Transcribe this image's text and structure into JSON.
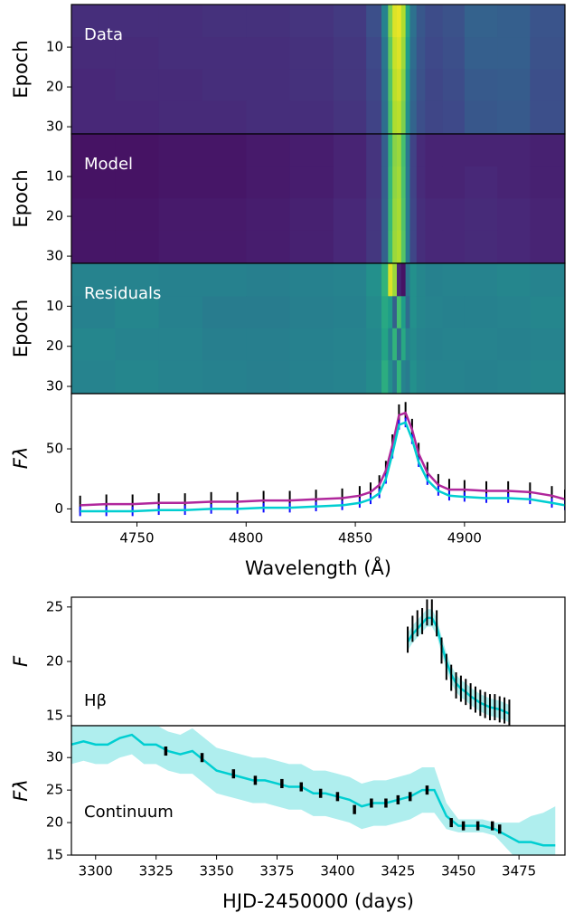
{
  "chart_data": [
    {
      "type": "heatmap",
      "label": "Data",
      "ylabel": "Epoch",
      "xlim": [
        4720,
        4946
      ],
      "ylim": [
        31.8,
        -0.7
      ],
      "yticks": [
        10,
        20,
        30
      ],
      "zlim": [
        0,
        1
      ],
      "xbins": [
        4720,
        4740,
        4760,
        4780,
        4800,
        4820,
        4840,
        4855,
        4862,
        4865,
        4867,
        4869,
        4871,
        4873,
        4875,
        4878,
        4882,
        4890,
        4900,
        4915,
        4930,
        4946
      ],
      "ybins": [
        -0.7,
        7.5,
        15.5,
        23.5,
        31.8
      ],
      "z": [
        [
          0.13,
          0.13,
          0.13,
          0.14,
          0.14,
          0.15,
          0.17,
          0.24,
          0.45,
          0.8,
          0.95,
          0.97,
          0.88,
          0.58,
          0.37,
          0.27,
          0.23,
          0.25,
          0.31,
          0.3,
          0.26
        ],
        [
          0.12,
          0.12,
          0.13,
          0.13,
          0.13,
          0.14,
          0.16,
          0.22,
          0.4,
          0.75,
          0.92,
          0.95,
          0.85,
          0.55,
          0.35,
          0.26,
          0.22,
          0.24,
          0.3,
          0.3,
          0.25
        ],
        [
          0.11,
          0.12,
          0.12,
          0.13,
          0.13,
          0.14,
          0.16,
          0.21,
          0.38,
          0.72,
          0.9,
          0.93,
          0.82,
          0.52,
          0.33,
          0.25,
          0.21,
          0.23,
          0.28,
          0.29,
          0.24
        ],
        [
          0.11,
          0.11,
          0.12,
          0.12,
          0.13,
          0.13,
          0.15,
          0.2,
          0.36,
          0.7,
          0.88,
          0.9,
          0.8,
          0.5,
          0.32,
          0.24,
          0.21,
          0.22,
          0.27,
          0.28,
          0.24
        ]
      ]
    },
    {
      "type": "heatmap",
      "label": "Model",
      "ylabel": "Epoch",
      "xlim": [
        4720,
        4946
      ],
      "ylim": [
        31.8,
        -0.7
      ],
      "yticks": [
        10,
        20,
        30
      ],
      "zlim": [
        0,
        1
      ],
      "xbins": [
        4720,
        4740,
        4760,
        4780,
        4800,
        4820,
        4840,
        4855,
        4862,
        4865,
        4867,
        4869,
        4871,
        4873,
        4875,
        4878,
        4882,
        4890,
        4900,
        4915,
        4930,
        4946
      ],
      "ybins": [
        -0.7,
        7.5,
        15.5,
        23.5,
        31.8
      ],
      "z": [
        [
          0.05,
          0.05,
          0.06,
          0.06,
          0.07,
          0.08,
          0.1,
          0.15,
          0.3,
          0.65,
          0.82,
          0.85,
          0.7,
          0.4,
          0.2,
          0.12,
          0.1,
          0.1,
          0.1,
          0.1,
          0.09
        ],
        [
          0.05,
          0.05,
          0.06,
          0.06,
          0.07,
          0.08,
          0.1,
          0.15,
          0.3,
          0.66,
          0.83,
          0.86,
          0.71,
          0.41,
          0.2,
          0.12,
          0.1,
          0.1,
          0.11,
          0.1,
          0.09
        ],
        [
          0.06,
          0.06,
          0.07,
          0.07,
          0.08,
          0.09,
          0.11,
          0.16,
          0.31,
          0.67,
          0.84,
          0.87,
          0.72,
          0.42,
          0.21,
          0.13,
          0.11,
          0.11,
          0.12,
          0.11,
          0.1
        ],
        [
          0.06,
          0.06,
          0.07,
          0.07,
          0.08,
          0.09,
          0.11,
          0.16,
          0.31,
          0.68,
          0.85,
          0.88,
          0.73,
          0.42,
          0.21,
          0.13,
          0.11,
          0.11,
          0.12,
          0.11,
          0.1
        ]
      ]
    },
    {
      "type": "heatmap",
      "label": "Residuals",
      "ylabel": "Epoch",
      "xlim": [
        4720,
        4946
      ],
      "ylim": [
        31.8,
        -0.7
      ],
      "yticks": [
        10,
        20,
        30
      ],
      "zlim": [
        0,
        1
      ],
      "xbins": [
        4720,
        4740,
        4760,
        4780,
        4800,
        4820,
        4840,
        4855,
        4862,
        4865,
        4867,
        4869,
        4871,
        4873,
        4875,
        4878,
        4882,
        4890,
        4900,
        4915,
        4930,
        4946
      ],
      "ybins": [
        -0.7,
        7.5,
        15.5,
        23.5,
        31.8
      ],
      "z": [
        [
          0.45,
          0.45,
          0.44,
          0.44,
          0.43,
          0.44,
          0.45,
          0.5,
          0.65,
          0.95,
          0.85,
          0.1,
          0.05,
          0.4,
          0.5,
          0.46,
          0.44,
          0.45,
          0.45,
          0.46,
          0.45
        ],
        [
          0.44,
          0.46,
          0.44,
          0.42,
          0.42,
          0.43,
          0.44,
          0.48,
          0.6,
          0.55,
          0.3,
          0.7,
          0.55,
          0.35,
          0.5,
          0.46,
          0.45,
          0.44,
          0.44,
          0.45,
          0.46
        ],
        [
          0.46,
          0.45,
          0.45,
          0.43,
          0.43,
          0.44,
          0.45,
          0.47,
          0.58,
          0.45,
          0.65,
          0.35,
          0.6,
          0.45,
          0.48,
          0.45,
          0.44,
          0.45,
          0.45,
          0.44,
          0.45
        ],
        [
          0.45,
          0.46,
          0.45,
          0.44,
          0.43,
          0.44,
          0.45,
          0.48,
          0.62,
          0.5,
          0.4,
          0.65,
          0.45,
          0.42,
          0.5,
          0.46,
          0.45,
          0.45,
          0.44,
          0.45,
          0.46
        ]
      ]
    },
    {
      "type": "line",
      "ylabel": "Fλ",
      "xlabel": "Wavelength (Å)",
      "xlim": [
        4720,
        4946
      ],
      "ylim": [
        -11,
        96
      ],
      "xticks": [
        4750,
        4800,
        4850,
        4900
      ],
      "yticks": [
        0,
        50
      ],
      "x": [
        4724,
        4736,
        4748,
        4760,
        4772,
        4784,
        4796,
        4808,
        4820,
        4832,
        4844,
        4852,
        4857,
        4861,
        4864,
        4867,
        4870,
        4873,
        4876,
        4879,
        4883,
        4888,
        4893,
        4900,
        4910,
        4920,
        4930,
        4940,
        4946
      ],
      "series": [
        {
          "style": "errorbar",
          "color": "#000000",
          "values": [
            4,
            5,
            5,
            6,
            6,
            7,
            7,
            8,
            8,
            9,
            10,
            12,
            15,
            21,
            33,
            55,
            80,
            82,
            68,
            48,
            32,
            22,
            18,
            17,
            16,
            16,
            15,
            12,
            9
          ],
          "errors": [
            7,
            7,
            7,
            7,
            7,
            7,
            7,
            7,
            7,
            7,
            7,
            7,
            7,
            7,
            7,
            7,
            7,
            7,
            7,
            7,
            7,
            7,
            7,
            7,
            7,
            7,
            7,
            7,
            7
          ]
        },
        {
          "style": "line",
          "color": "#b0279c",
          "values": [
            3,
            4,
            4,
            5,
            5,
            6,
            6,
            7,
            7,
            8,
            9,
            11,
            14,
            20,
            32,
            53,
            78,
            80,
            66,
            46,
            30,
            20,
            16,
            16,
            15,
            15,
            14,
            11,
            8
          ]
        },
        {
          "style": "errorbar",
          "color": "#1010ff",
          "values": [
            -2,
            -2,
            -2,
            -1,
            -1,
            0,
            0,
            1,
            1,
            2,
            3,
            5,
            8,
            13,
            25,
            46,
            70,
            72,
            58,
            39,
            24,
            15,
            11,
            10,
            9,
            9,
            8,
            5,
            3
          ],
          "errors": [
            4,
            4,
            4,
            4,
            4,
            4,
            4,
            4,
            4,
            4,
            4,
            4,
            4,
            4,
            4,
            4,
            4,
            4,
            4,
            4,
            4,
            4,
            4,
            4,
            4,
            4,
            4,
            4,
            4
          ]
        },
        {
          "style": "line",
          "color": "#00ced1",
          "values": [
            -2,
            -2,
            -2,
            -1,
            -1,
            0,
            0,
            1,
            1,
            2,
            3,
            5,
            8,
            13,
            25,
            46,
            70,
            72,
            58,
            39,
            24,
            15,
            11,
            10,
            9,
            9,
            8,
            5,
            3
          ]
        }
      ]
    },
    {
      "type": "line",
      "ylabel": "F",
      "label": "Hβ",
      "xlim": [
        3290,
        3494
      ],
      "ylim": [
        14.1,
        25.9
      ],
      "yticks": [
        15,
        20,
        25
      ],
      "x": [
        3429,
        3431,
        3433,
        3435,
        3437,
        3439,
        3441,
        3443,
        3445,
        3447,
        3449,
        3451,
        3453,
        3455,
        3457,
        3459,
        3461,
        3463,
        3465,
        3467,
        3469,
        3471
      ],
      "series": [
        {
          "style": "band",
          "color": "#afeeee",
          "upper": [
            22.6,
            23.3,
            23.8,
            24.3,
            24.8,
            24.8,
            24,
            22.3,
            20.8,
            19.6,
            18.8,
            18.3,
            18,
            17.6,
            17.3,
            17,
            16.8,
            16.6,
            16.5,
            16.4,
            16.2,
            16
          ],
          "lower": [
            21,
            21.7,
            22.2,
            22.7,
            23.2,
            23.2,
            22.4,
            20.7,
            19.2,
            18,
            17.2,
            16.7,
            16.4,
            16,
            15.7,
            15.4,
            15.2,
            15,
            14.9,
            14.8,
            14.6,
            14.4
          ]
        },
        {
          "style": "line",
          "color": "#00ced1",
          "values": [
            21.8,
            22.5,
            23,
            23.5,
            24,
            24,
            23.2,
            21.5,
            20,
            18.8,
            18,
            17.5,
            17.2,
            16.8,
            16.5,
            16.2,
            16,
            15.8,
            15.7,
            15.6,
            15.4,
            15.2
          ]
        },
        {
          "style": "errorbar",
          "color": "#000000",
          "values": [
            22,
            23,
            23.5,
            23.7,
            24.5,
            24.5,
            23.5,
            21,
            19.5,
            18.5,
            17.8,
            17.5,
            17.2,
            16.8,
            16.5,
            16.2,
            16,
            15.8,
            15.8,
            15.6,
            15.5,
            15.3
          ],
          "errors": [
            1.2,
            1.2,
            1.2,
            1.2,
            1.2,
            1.2,
            1.2,
            1.2,
            1.2,
            1.2,
            1.2,
            1.2,
            1.2,
            1.2,
            1.2,
            1.2,
            1.2,
            1.2,
            1.2,
            1.2,
            1.2,
            1.2
          ]
        }
      ]
    },
    {
      "type": "line",
      "ylabel": "Fλ",
      "label": "Continuum",
      "xlabel": "HJD-2450000 (days)",
      "xlim": [
        3290,
        3494
      ],
      "ylim": [
        15,
        34.9
      ],
      "xticks": [
        3300,
        3325,
        3350,
        3375,
        3400,
        3425,
        3450,
        3475
      ],
      "yticks": [
        15,
        20,
        25,
        30
      ],
      "x": [
        3290,
        3295,
        3300,
        3305,
        3310,
        3315,
        3320,
        3325,
        3330,
        3335,
        3340,
        3345,
        3350,
        3355,
        3360,
        3365,
        3370,
        3375,
        3380,
        3385,
        3390,
        3395,
        3400,
        3405,
        3410,
        3415,
        3420,
        3425,
        3430,
        3435,
        3440,
        3445,
        3450,
        3455,
        3460,
        3465,
        3470,
        3475,
        3480,
        3485,
        3490
      ],
      "series": [
        {
          "style": "band",
          "color": "#afeeee",
          "upper": [
            35,
            35.5,
            35,
            35,
            36,
            36.5,
            35,
            35,
            34,
            33.5,
            34.5,
            33,
            31.5,
            31,
            30.5,
            30,
            30,
            29.5,
            29,
            29,
            28,
            28,
            27.5,
            27,
            26,
            26.5,
            26.5,
            27,
            27.5,
            28.5,
            28.5,
            23,
            20.5,
            20.5,
            20.5,
            20,
            20,
            20,
            21,
            21.5,
            22.5
          ],
          "lower": [
            29,
            29.5,
            29,
            29,
            30,
            30.5,
            29,
            29,
            28,
            27.5,
            27.5,
            26,
            24.5,
            24,
            23.5,
            23,
            23,
            22.5,
            22,
            22,
            21,
            21,
            20.5,
            20,
            19,
            19.5,
            19.5,
            20,
            20.5,
            21.5,
            21.5,
            19,
            18.5,
            18.5,
            18.5,
            18,
            16,
            14,
            13,
            11.5,
            10.5
          ]
        },
        {
          "style": "line",
          "color": "#00ced1",
          "values": [
            32,
            32.5,
            32,
            32,
            33,
            33.5,
            32,
            32,
            31,
            30.5,
            31,
            29.5,
            28,
            27.5,
            27,
            26.5,
            26.5,
            26,
            25.5,
            25.5,
            24.5,
            24.5,
            24,
            23.5,
            22.5,
            23,
            23,
            23.5,
            24,
            25,
            25,
            21,
            19.5,
            19.5,
            19.5,
            19,
            18,
            17,
            17,
            16.5,
            16.5
          ]
        },
        {
          "style": "errorbar",
          "color": "#000000",
          "x": [
            3329,
            3344,
            3357,
            3366,
            3377,
            3385,
            3393,
            3400,
            3407,
            3414,
            3420,
            3425,
            3430,
            3437,
            3447,
            3452,
            3458,
            3464,
            3467
          ],
          "values": [
            31,
            30,
            27.5,
            26.5,
            26,
            25.5,
            24.5,
            24,
            22,
            23,
            23,
            23.5,
            24,
            25,
            20,
            19.5,
            19.5,
            19.5,
            19
          ],
          "errors": [
            0.7,
            0.7,
            0.7,
            0.7,
            0.7,
            0.7,
            0.7,
            0.7,
            0.7,
            0.7,
            0.7,
            0.7,
            0.7,
            0.7,
            0.7,
            0.7,
            0.7,
            0.7,
            0.7
          ]
        }
      ]
    }
  ]
}
